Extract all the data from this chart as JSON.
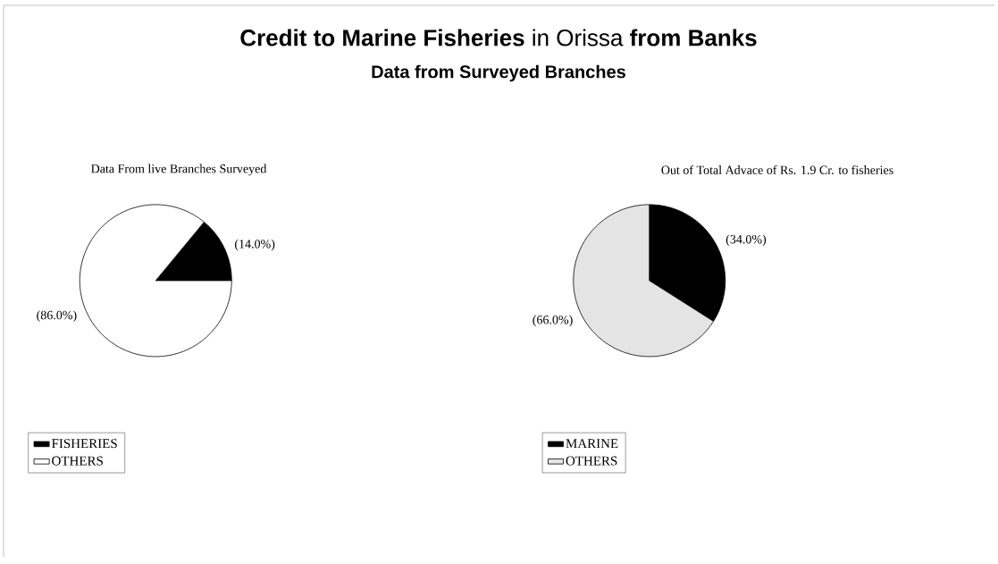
{
  "chart_data": [
    {
      "type": "pie",
      "title": "**Credit to Marine Fisheries** in Orissa **from Banks**",
      "subtitle": "Data from Surveyed Branches",
      "annotations": [
        "Data From live Branches Surveyed"
      ],
      "categories": [
        "FISHERIES",
        "OTHERS"
      ],
      "values": [
        14,
        86
      ],
      "colors": [
        "#000000",
        "#ffffff"
      ],
      "value_labels": [
        "(14.0%)",
        "(86.0%)"
      ],
      "legend": "bottom"
    },
    {
      "type": "pie",
      "title": "Out of Total Advace of Rs. 1.9 Cr. to fisheries",
      "categories": [
        "MARINE",
        "OTHERS"
      ],
      "values": [
        34,
        66
      ],
      "colors": [
        "#000000",
        "#e4e4e4"
      ],
      "value_labels": [
        "(34.0%)",
        "(66.0%)"
      ],
      "legend": "bottom"
    }
  ]
}
